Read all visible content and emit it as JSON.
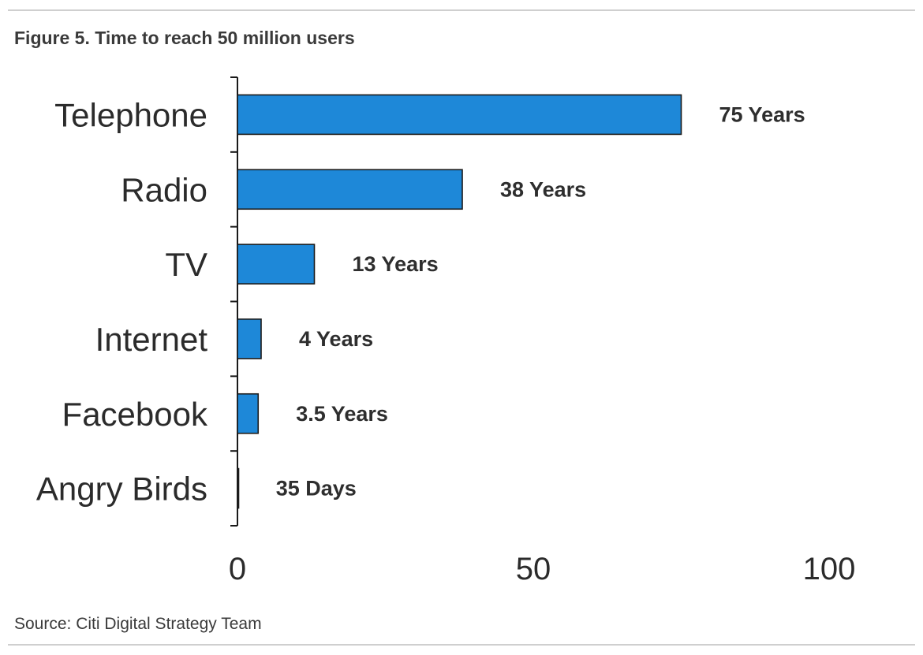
{
  "figure": {
    "title": "Figure 5. Time to reach 50 million users",
    "source": "Source: Citi Digital Strategy Team"
  },
  "chart_data": {
    "type": "bar",
    "orientation": "horizontal",
    "title": "Figure 5. Time to reach 50 million users",
    "xlabel": "",
    "ylabel": "",
    "xlim": [
      0,
      100
    ],
    "x_ticks": [
      0,
      50,
      100
    ],
    "grid": false,
    "legend": "none",
    "bar_color": "#1e88d8",
    "categories": [
      "Telephone",
      "Radio",
      "TV",
      "Internet",
      "Facebook",
      "Angry Birds"
    ],
    "values": [
      75,
      38,
      13,
      4,
      3.5,
      0.096
    ],
    "data_labels": [
      "75 Years",
      "38 Years",
      "13 Years",
      "4 Years",
      "3.5 Years",
      "35 Days"
    ]
  }
}
